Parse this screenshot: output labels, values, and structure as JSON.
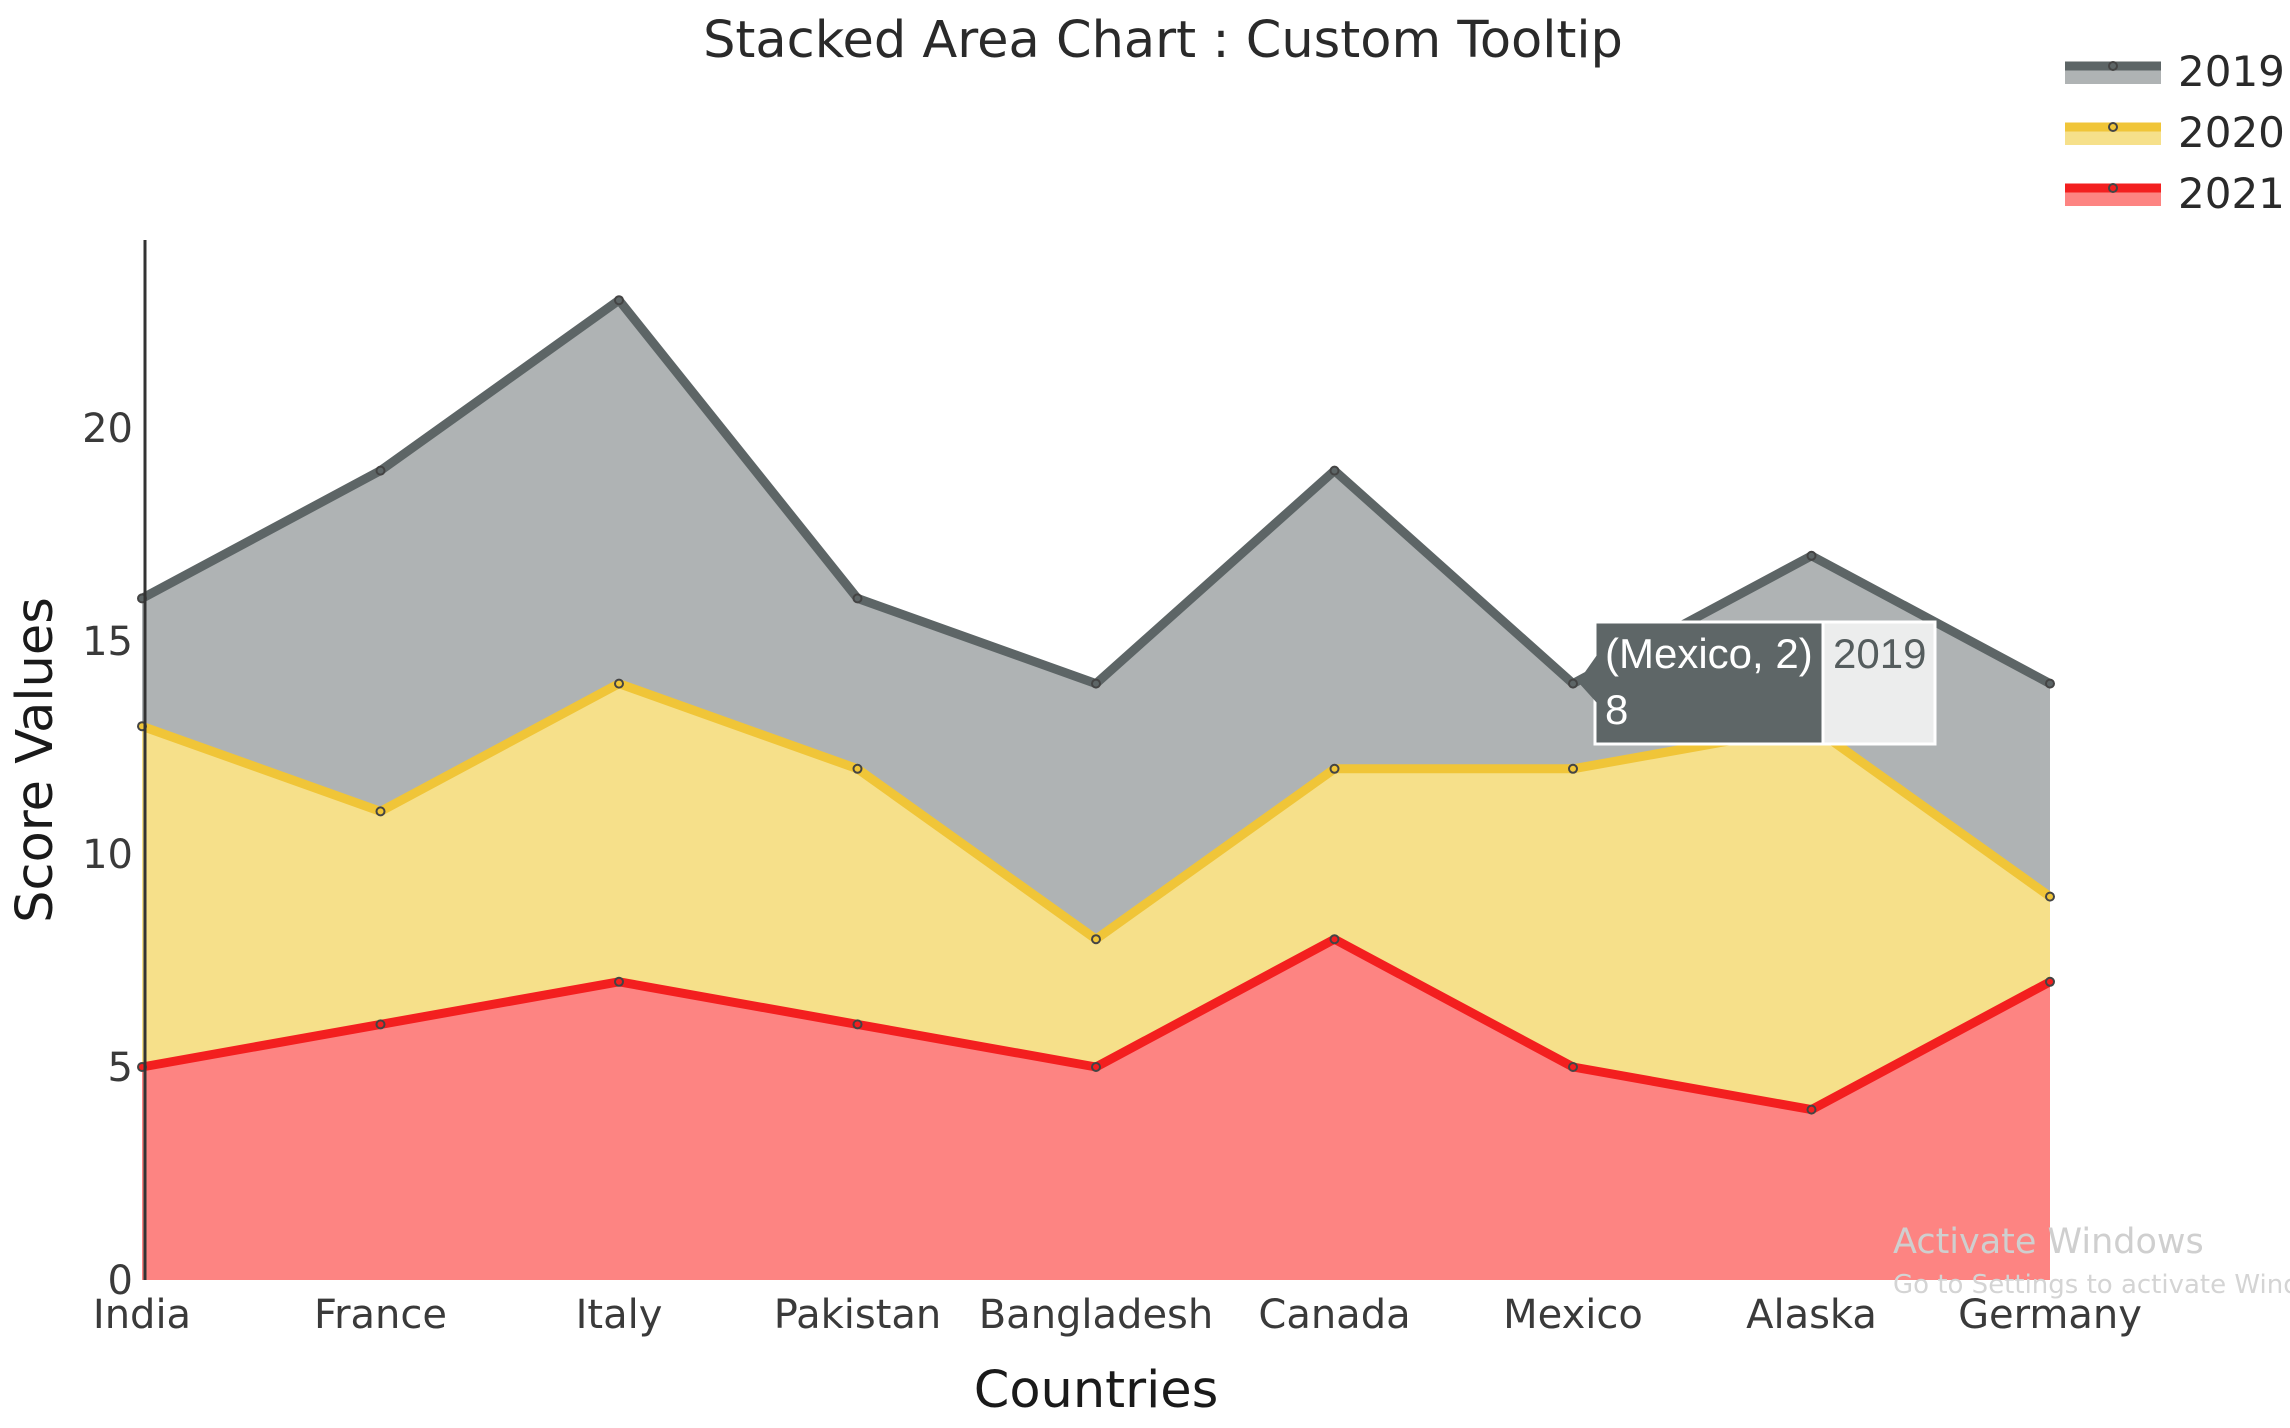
{
  "chart_data": {
    "type": "area",
    "stacked": true,
    "title": "Stacked Area Chart : Custom Tooltip",
    "xlabel": "Countries",
    "ylabel": "Score Values",
    "categories": [
      "India",
      "France",
      "Italy",
      "Pakistan",
      "Bangladesh",
      "Canada",
      "Mexico",
      "Alaska",
      "Germany"
    ],
    "series": [
      {
        "name": "2021",
        "values": [
          5,
          6,
          7,
          6,
          5,
          8,
          5,
          4,
          7
        ],
        "color": "#f31f1f",
        "fill": "#fd8482"
      },
      {
        "name": "2020",
        "values": [
          8,
          5,
          7,
          6,
          3,
          4,
          7,
          9,
          2
        ],
        "color": "#f0c538",
        "fill": "#f6e08a"
      },
      {
        "name": "2019",
        "values": [
          3,
          8,
          9,
          4,
          6,
          7,
          2,
          4,
          5
        ],
        "color": "#5d6566",
        "fill": "#afb3b4"
      }
    ],
    "ylim": [
      0,
      24
    ],
    "yticks": [
      0,
      5,
      10,
      15,
      20
    ],
    "legend": {
      "placement": "top-right",
      "order": [
        "2019",
        "2020",
        "2021"
      ]
    },
    "grid": false,
    "tooltip": {
      "line1": "(Mexico, 2)",
      "line2": "8",
      "series_label": "2019",
      "category": "Mexico",
      "series": "2019"
    }
  },
  "watermark": {
    "line1": "Activate Windows",
    "line2": "Go to Settings to activate Windows."
  }
}
